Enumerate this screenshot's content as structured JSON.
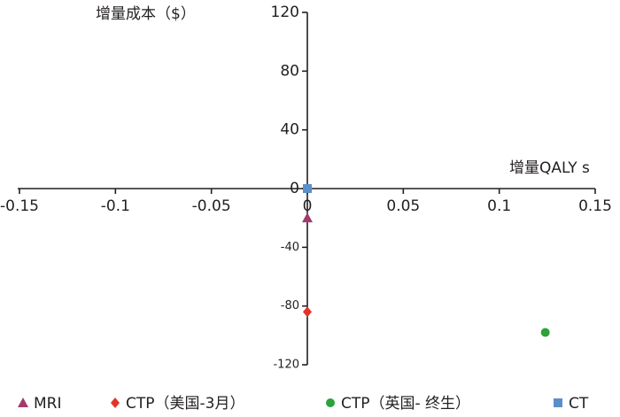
{
  "chart_data": {
    "type": "scatter",
    "y_label": "增量成本（$）",
    "x_label": "增量QALY s",
    "xlim": [
      -0.15,
      0.15
    ],
    "xticks": [
      -0.15,
      -0.1,
      -0.05,
      0,
      0.05,
      0.1,
      0.15
    ],
    "ylim": [
      -120,
      120
    ],
    "yticks": [
      120,
      80,
      40,
      0,
      -40,
      -80,
      -120
    ],
    "grid": false,
    "legend": "bottom",
    "series": [
      {
        "name": "MRI",
        "color": "#a23a6e",
        "marker": "triangle",
        "x": [
          0
        ],
        "y": [
          -20
        ]
      },
      {
        "name": "CTP（美国-3月）",
        "color": "#e5332a",
        "marker": "diamond",
        "x": [
          0
        ],
        "y": [
          -84
        ]
      },
      {
        "name": "CTP（英国- 终生）",
        "color": "#2ba339",
        "marker": "circle",
        "x": [
          0.124
        ],
        "y": [
          -98
        ]
      },
      {
        "name": "CT",
        "color": "#5b8fc9",
        "marker": "square",
        "x": [
          0
        ],
        "y": [
          0
        ]
      }
    ]
  }
}
